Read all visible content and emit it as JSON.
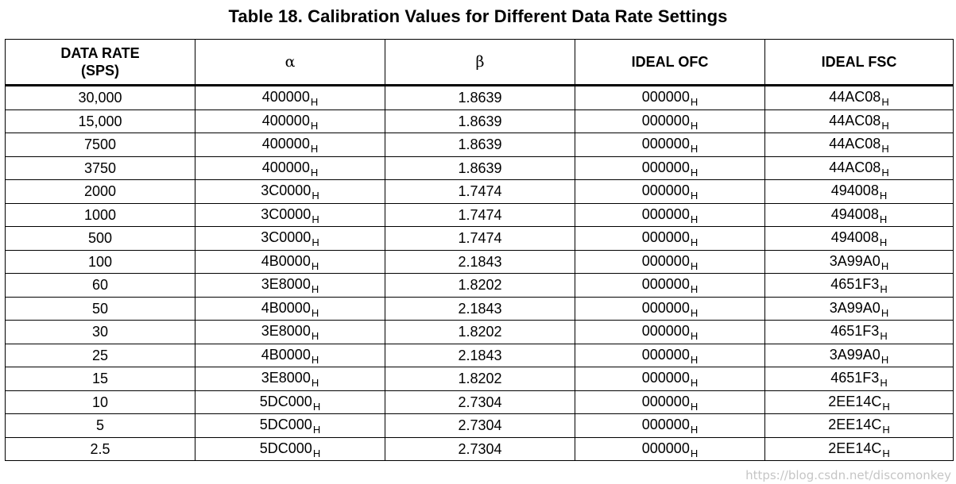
{
  "title": "Table 18. Calibration Values for Different Data Rate Settings",
  "headers": {
    "data_rate_line1": "DATA RATE",
    "data_rate_line2": "(SPS)",
    "alpha": "α",
    "beta": "β",
    "ideal_ofc": "IDEAL OFC",
    "ideal_fsc": "IDEAL FSC"
  },
  "hex_suffix": "H",
  "rows": [
    {
      "rate": "30,000",
      "alpha": "400000",
      "beta": "1.8639",
      "ofc": "000000",
      "fsc": "44AC08"
    },
    {
      "rate": "15,000",
      "alpha": "400000",
      "beta": "1.8639",
      "ofc": "000000",
      "fsc": "44AC08"
    },
    {
      "rate": "7500",
      "alpha": "400000",
      "beta": "1.8639",
      "ofc": "000000",
      "fsc": "44AC08"
    },
    {
      "rate": "3750",
      "alpha": "400000",
      "beta": "1.8639",
      "ofc": "000000",
      "fsc": "44AC08"
    },
    {
      "rate": "2000",
      "alpha": "3C0000",
      "beta": "1.7474",
      "ofc": "000000",
      "fsc": "494008"
    },
    {
      "rate": "1000",
      "alpha": "3C0000",
      "beta": "1.7474",
      "ofc": "000000",
      "fsc": "494008"
    },
    {
      "rate": "500",
      "alpha": "3C0000",
      "beta": "1.7474",
      "ofc": "000000",
      "fsc": "494008"
    },
    {
      "rate": "100",
      "alpha": "4B0000",
      "beta": "2.1843",
      "ofc": "000000",
      "fsc": "3A99A0"
    },
    {
      "rate": "60",
      "alpha": "3E8000",
      "beta": "1.8202",
      "ofc": "000000",
      "fsc": "4651F3"
    },
    {
      "rate": "50",
      "alpha": "4B0000",
      "beta": "2.1843",
      "ofc": "000000",
      "fsc": "3A99A0"
    },
    {
      "rate": "30",
      "alpha": "3E8000",
      "beta": "1.8202",
      "ofc": "000000",
      "fsc": "4651F3"
    },
    {
      "rate": "25",
      "alpha": "4B0000",
      "beta": "2.1843",
      "ofc": "000000",
      "fsc": "3A99A0"
    },
    {
      "rate": "15",
      "alpha": "3E8000",
      "beta": "1.8202",
      "ofc": "000000",
      "fsc": "4651F3"
    },
    {
      "rate": "10",
      "alpha": "5DC000",
      "beta": "2.7304",
      "ofc": "000000",
      "fsc": "2EE14C"
    },
    {
      "rate": "5",
      "alpha": "5DC000",
      "beta": "2.7304",
      "ofc": "000000",
      "fsc": "2EE14C"
    },
    {
      "rate": "2.5",
      "alpha": "5DC000",
      "beta": "2.7304",
      "ofc": "000000",
      "fsc": "2EE14C"
    }
  ],
  "watermark": "https://blog.csdn.net/discomonkey"
}
